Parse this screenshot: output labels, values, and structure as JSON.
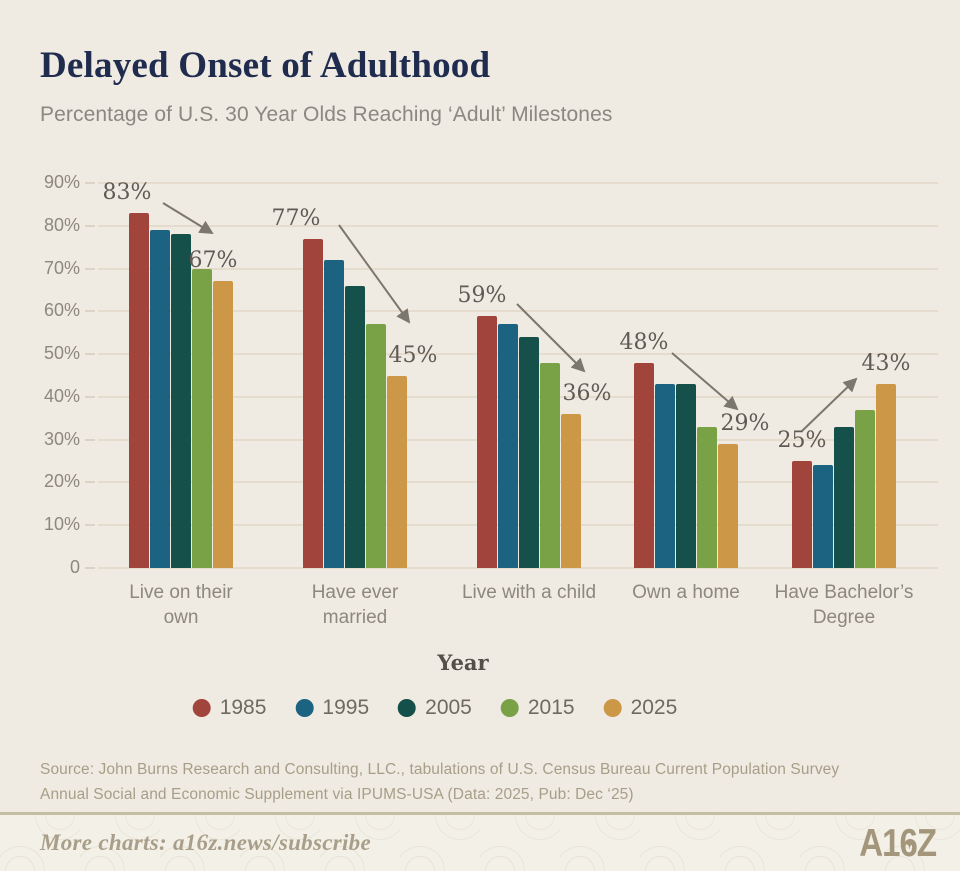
{
  "header": {
    "title": "Delayed Onset of Adulthood",
    "subtitle": "Percentage of U.S. 30 Year Olds Reaching ‘Adult’ Milestones"
  },
  "chart_data": {
    "type": "bar",
    "title": "Delayed Onset of Adulthood",
    "subtitle": "Percentage of U.S. 30 Year Olds Reaching ‘Adult’ Milestones",
    "xlabel": "Year",
    "ylabel": "",
    "ylim": [
      0,
      90
    ],
    "grid": true,
    "legend_position": "bottom",
    "legend_title": "Year",
    "ytick_labels": [
      "90%",
      "80%",
      "70%",
      "60%",
      "50%",
      "40%",
      "30%",
      "20%",
      "10%",
      "0"
    ],
    "categories": [
      "Live on their\nown",
      "Have ever\nmarried",
      "Live with a child",
      "Own a home",
      "Have Bachelor’s\nDegree"
    ],
    "series": [
      {
        "name": "1985",
        "color": "#a0443c",
        "values": [
          83,
          77,
          59,
          48,
          25
        ]
      },
      {
        "name": "1995",
        "color": "#1b6380",
        "values": [
          79,
          72,
          57,
          43,
          24
        ]
      },
      {
        "name": "2005",
        "color": "#15504a",
        "values": [
          78,
          66,
          54,
          43,
          33
        ]
      },
      {
        "name": "2015",
        "color": "#79a246",
        "values": [
          70,
          57,
          48,
          33,
          37
        ]
      },
      {
        "name": "2025",
        "color": "#cc9848",
        "values": [
          67,
          45,
          36,
          29,
          43
        ]
      }
    ],
    "annotations": [
      {
        "start_label": "83%",
        "end_label": "67%",
        "trend": "down"
      },
      {
        "start_label": "77%",
        "end_label": "45%",
        "trend": "down"
      },
      {
        "start_label": "59%",
        "end_label": "36%",
        "trend": "down"
      },
      {
        "start_label": "48%",
        "end_label": "29%",
        "trend": "down"
      },
      {
        "start_label": "25%",
        "end_label": "43%",
        "trend": "up"
      }
    ]
  },
  "source": {
    "line1": "Source: John Burns Research and Consulting, LLC., tabulations of U.S. Census Bureau Current Population Survey",
    "line2": "Annual Social and Economic Supplement via IPUMS-USA (Data: 2025, Pub: Dec ‘25)"
  },
  "footer": {
    "text": "More charts: a16z.news/subscribe",
    "logo_text": "A16Z",
    "logo_star": "✦"
  },
  "colors": {
    "background": "#efeae2",
    "title": "#202c4e",
    "gridline": "#e5dccd",
    "arrow": "#7b766e",
    "divider": "#c4bfa2",
    "footer_background": "#f3f0e7",
    "logo": "#a3967b"
  }
}
